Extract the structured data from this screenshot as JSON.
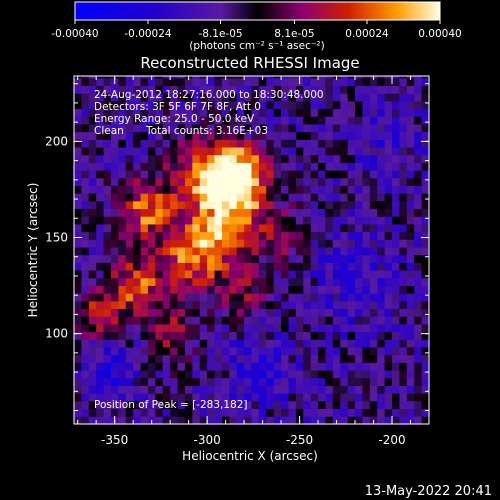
{
  "colorbar": {
    "ticks": [
      "-0.00040",
      "-0.00024",
      "-8.1e-05",
      "8.1e-05",
      "0.00024",
      "0.00040"
    ],
    "tick_values": [
      -0.0004,
      -0.00024,
      -8.1e-05,
      8.1e-05,
      0.00024,
      0.0004
    ],
    "range": [
      -0.0004,
      0.0004
    ],
    "units": "(photons cm⁻² s⁻¹ asec⁻²)"
  },
  "chart_data": {
    "type": "heatmap",
    "title": "Reconstructed RHESSI Image",
    "xlabel": "Heliocentric X (arcsec)",
    "ylabel": "Heliocentric Y (arcsec)",
    "xlim": [
      -372,
      -180
    ],
    "ylim": [
      53,
      234
    ],
    "xticks": [
      -350,
      -300,
      -250,
      -200
    ],
    "yticks": [
      100,
      150,
      200
    ],
    "colorscale_range": [
      -0.0004,
      0.0004
    ],
    "blobs": [
      {
        "x": -283,
        "y": 182,
        "sigma": 11,
        "amp": 0.00044
      },
      {
        "x": -290,
        "y": 160,
        "sigma": 16,
        "amp": 0.00032
      },
      {
        "x": -300,
        "y": 185,
        "sigma": 13,
        "amp": 0.00028
      },
      {
        "x": -333,
        "y": 165,
        "sigma": 10,
        "amp": 0.00034
      },
      {
        "x": -307,
        "y": 140,
        "sigma": 12,
        "amp": 0.0003
      },
      {
        "x": -338,
        "y": 125,
        "sigma": 11,
        "amp": 0.0003
      },
      {
        "x": -360,
        "y": 110,
        "sigma": 8,
        "amp": 0.00026
      },
      {
        "x": -318,
        "y": 100,
        "sigma": 10,
        "amp": 0.00018
      },
      {
        "x": -280,
        "y": 120,
        "sigma": 9,
        "amp": 0.00014
      },
      {
        "x": -258,
        "y": 150,
        "sigma": 9,
        "amp": 0.00012
      },
      {
        "x": -352,
        "y": 80,
        "sigma": 9,
        "amp": -0.00018
      },
      {
        "x": -270,
        "y": 80,
        "sigma": 12,
        "amp": -0.00016
      },
      {
        "x": -220,
        "y": 130,
        "sigma": 16,
        "amp": -0.00012
      },
      {
        "x": -200,
        "y": 200,
        "sigma": 12,
        "amp": -0.0001
      }
    ],
    "peak": {
      "x": -283,
      "y": 182
    },
    "background_level": -8e-05,
    "noise_amplitude": 0.00011
  },
  "title": "Reconstructed RHESSI Image",
  "info": {
    "line1": "24-Aug-2012 18:27:16.000 to 18:30:48.000",
    "line2": "Detectors: 3F 5F 6F 7F 8F, Att 0",
    "line3": "Energy Range: 25.0 - 50.0 keV",
    "line4_a": "Clean",
    "line4_b": "Total counts: 3.16E+03"
  },
  "peak_label": "Position of Peak = [-283,182]",
  "axes": {
    "xlabel": "Heliocentric X (arcsec)",
    "ylabel": "Heliocentric Y (arcsec)",
    "xtick_labels": [
      "-350",
      "-300",
      "-250",
      "-200"
    ],
    "ytick_labels": [
      "100",
      "150",
      "200"
    ]
  },
  "footer_date": "13-May-2022 20:41"
}
